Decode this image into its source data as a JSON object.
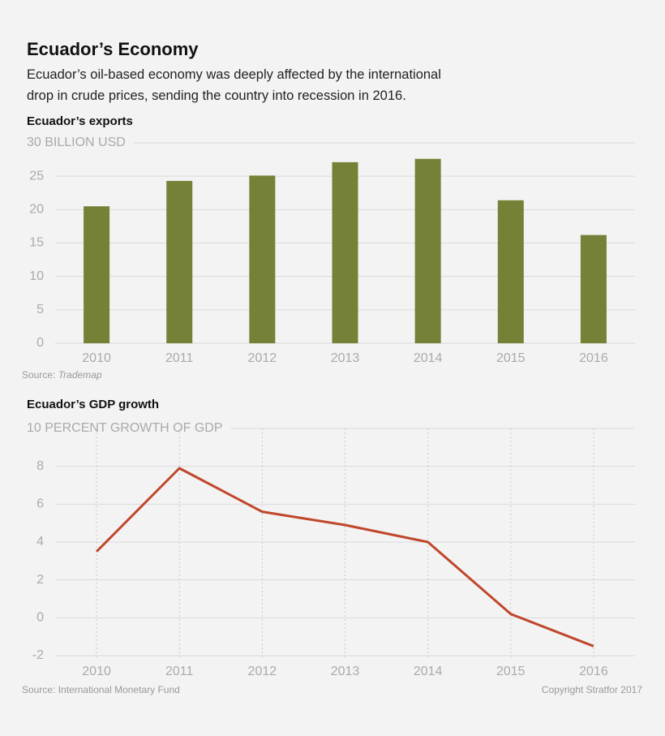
{
  "title": "Ecuador’s Economy",
  "subtitle": "Ecuador’s oil-based economy was deeply affected by the international drop in crude prices, sending the country into recession in 2016.",
  "copyright": "Copyright Stratfor 2017",
  "chart_data": [
    {
      "type": "bar",
      "title": "Ecuador’s exports",
      "categories": [
        "2010",
        "2011",
        "2012",
        "2013",
        "2014",
        "2015",
        "2016"
      ],
      "values": [
        20.5,
        24.3,
        25.1,
        27.1,
        27.6,
        21.4,
        16.2
      ],
      "color": "#758137",
      "ylim": [
        0,
        30
      ],
      "yticks": [
        0,
        5,
        10,
        15,
        20,
        25,
        {
          "value": 30,
          "label": "30 BILLION USD"
        }
      ],
      "grid": true,
      "source_label": "Source:",
      "source_name": "Trademap"
    },
    {
      "type": "line",
      "title": "Ecuador’s GDP growth",
      "categories": [
        "2010",
        "2011",
        "2012",
        "2013",
        "2014",
        "2015",
        "2016"
      ],
      "values": [
        3.5,
        7.9,
        5.6,
        4.9,
        4.0,
        0.2,
        -1.5
      ],
      "color": "#c0472b",
      "ylim": [
        -2,
        10
      ],
      "yticks": [
        -2,
        0,
        2,
        4,
        6,
        8,
        {
          "value": 10,
          "label": "10 PERCENT GROWTH OF GDP"
        }
      ],
      "grid": true,
      "source_label": "Source:",
      "source_name": "International Monetary Fund"
    }
  ]
}
